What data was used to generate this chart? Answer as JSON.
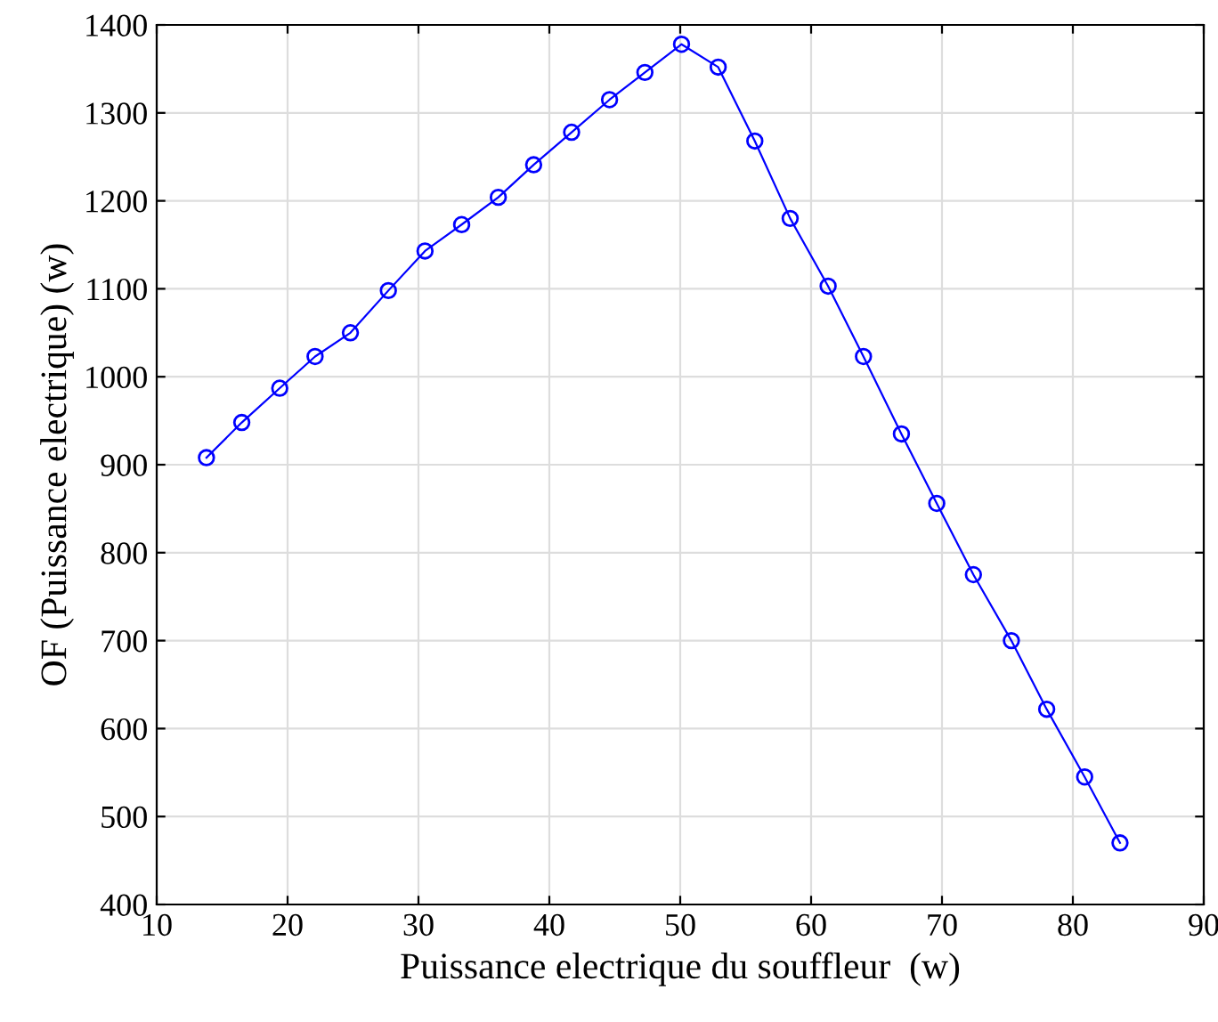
{
  "chart_data": {
    "type": "line",
    "xlabel": "Puissance electrique du souffleur  (w)",
    "ylabel": "OF (Puissance electrique) (w)",
    "x": [
      13.8,
      16.5,
      19.4,
      22.1,
      24.8,
      27.7,
      30.5,
      33.3,
      36.1,
      38.8,
      41.7,
      44.6,
      47.3,
      50.1,
      52.9,
      55.7,
      58.4,
      61.3,
      64.0,
      66.9,
      69.6,
      72.4,
      75.3,
      78.0,
      80.9,
      83.6
    ],
    "series": [
      {
        "color": "#0000ff",
        "values": [
          908,
          948,
          987,
          1023,
          1050,
          1098,
          1143,
          1173,
          1204,
          1241,
          1278,
          1315,
          1346,
          1378,
          1352,
          1268,
          1180,
          1103,
          1023,
          935,
          856,
          775,
          700,
          622,
          545,
          470
        ]
      }
    ],
    "xlim": [
      10,
      90
    ],
    "xticks": [
      10,
      20,
      30,
      40,
      50,
      60,
      70,
      80,
      90
    ],
    "ylim": [
      400,
      1400
    ],
    "yticks": [
      400,
      500,
      600,
      700,
      800,
      900,
      1000,
      1100,
      1200,
      1300,
      1400
    ],
    "grid": true,
    "marker": "circle",
    "line_style": "solid"
  }
}
